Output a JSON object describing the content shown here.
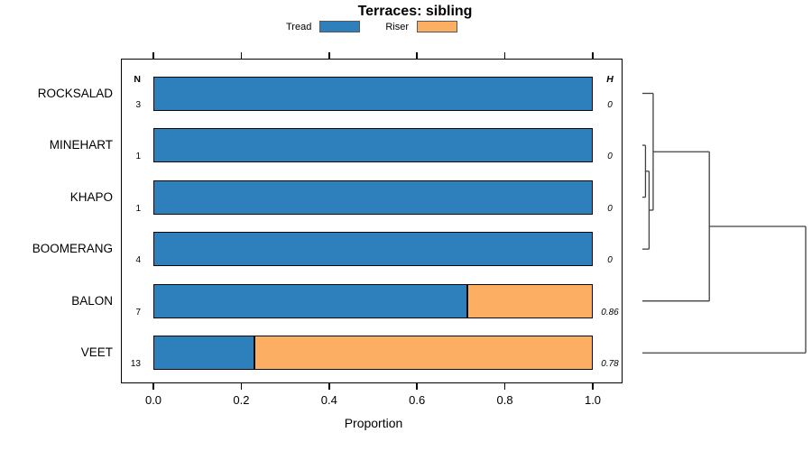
{
  "title": "Terraces: sibling",
  "columns": {
    "n_header": "N",
    "h_header": "H"
  },
  "colors": {
    "tread": "#2e80bc",
    "riser": "#fcae62",
    "bar_border": "#0a0a0a",
    "legend_swatch_border": "#595959",
    "dendrogram_line": "#404040",
    "frame": "#000000"
  },
  "chart_data": {
    "type": "bar",
    "orientation": "horizontal",
    "stacked": true,
    "title": "Terraces: sibling",
    "xlabel": "Proportion",
    "xlim": [
      0,
      1
    ],
    "x_ticks": [
      0,
      0.2,
      0.4,
      0.6,
      0.8,
      1.0
    ],
    "x_tick_labels": [
      "0.0",
      "0.2",
      "0.4",
      "0.6",
      "0.8",
      "1.0"
    ],
    "grid": false,
    "legend_position": "top",
    "categories": [
      "ROCKSALAD",
      "MINEHART",
      "KHAPO",
      "BOOMERANG",
      "BALON",
      "VEET"
    ],
    "n_values": [
      3,
      1,
      1,
      4,
      7,
      13
    ],
    "h_values": [
      "0",
      "0",
      "0",
      "0",
      "0.86",
      "0.78"
    ],
    "series": [
      {
        "name": "Tread",
        "color": "#2e80bc",
        "values": [
          1.0,
          1.0,
          1.0,
          1.0,
          0.714,
          0.231
        ]
      },
      {
        "name": "Riser",
        "color": "#fcae62",
        "values": [
          0,
          0,
          0,
          0,
          0.286,
          0.769
        ]
      }
    ]
  },
  "dendrogram": {
    "leaves": [
      "ROCKSALAD",
      "MINEHART",
      "KHAPO",
      "BOOMERANG",
      "BALON",
      "VEET"
    ],
    "tree": {
      "h": 1.0,
      "children": [
        {
          "h": 0.41,
          "children": [
            {
              "h": 0.066,
              "children": [
                {
                  "leaf": "ROCKSALAD"
                },
                {
                  "h": 0.041,
                  "children": [
                    {
                      "h": 0.019,
                      "children": [
                        {
                          "leaf": "MINEHART"
                        },
                        {
                          "leaf": "KHAPO"
                        }
                      ]
                    },
                    {
                      "leaf": "BOOMERANG"
                    }
                  ]
                }
              ]
            },
            {
              "leaf": "BALON"
            }
          ]
        },
        {
          "leaf": "VEET"
        }
      ]
    }
  }
}
